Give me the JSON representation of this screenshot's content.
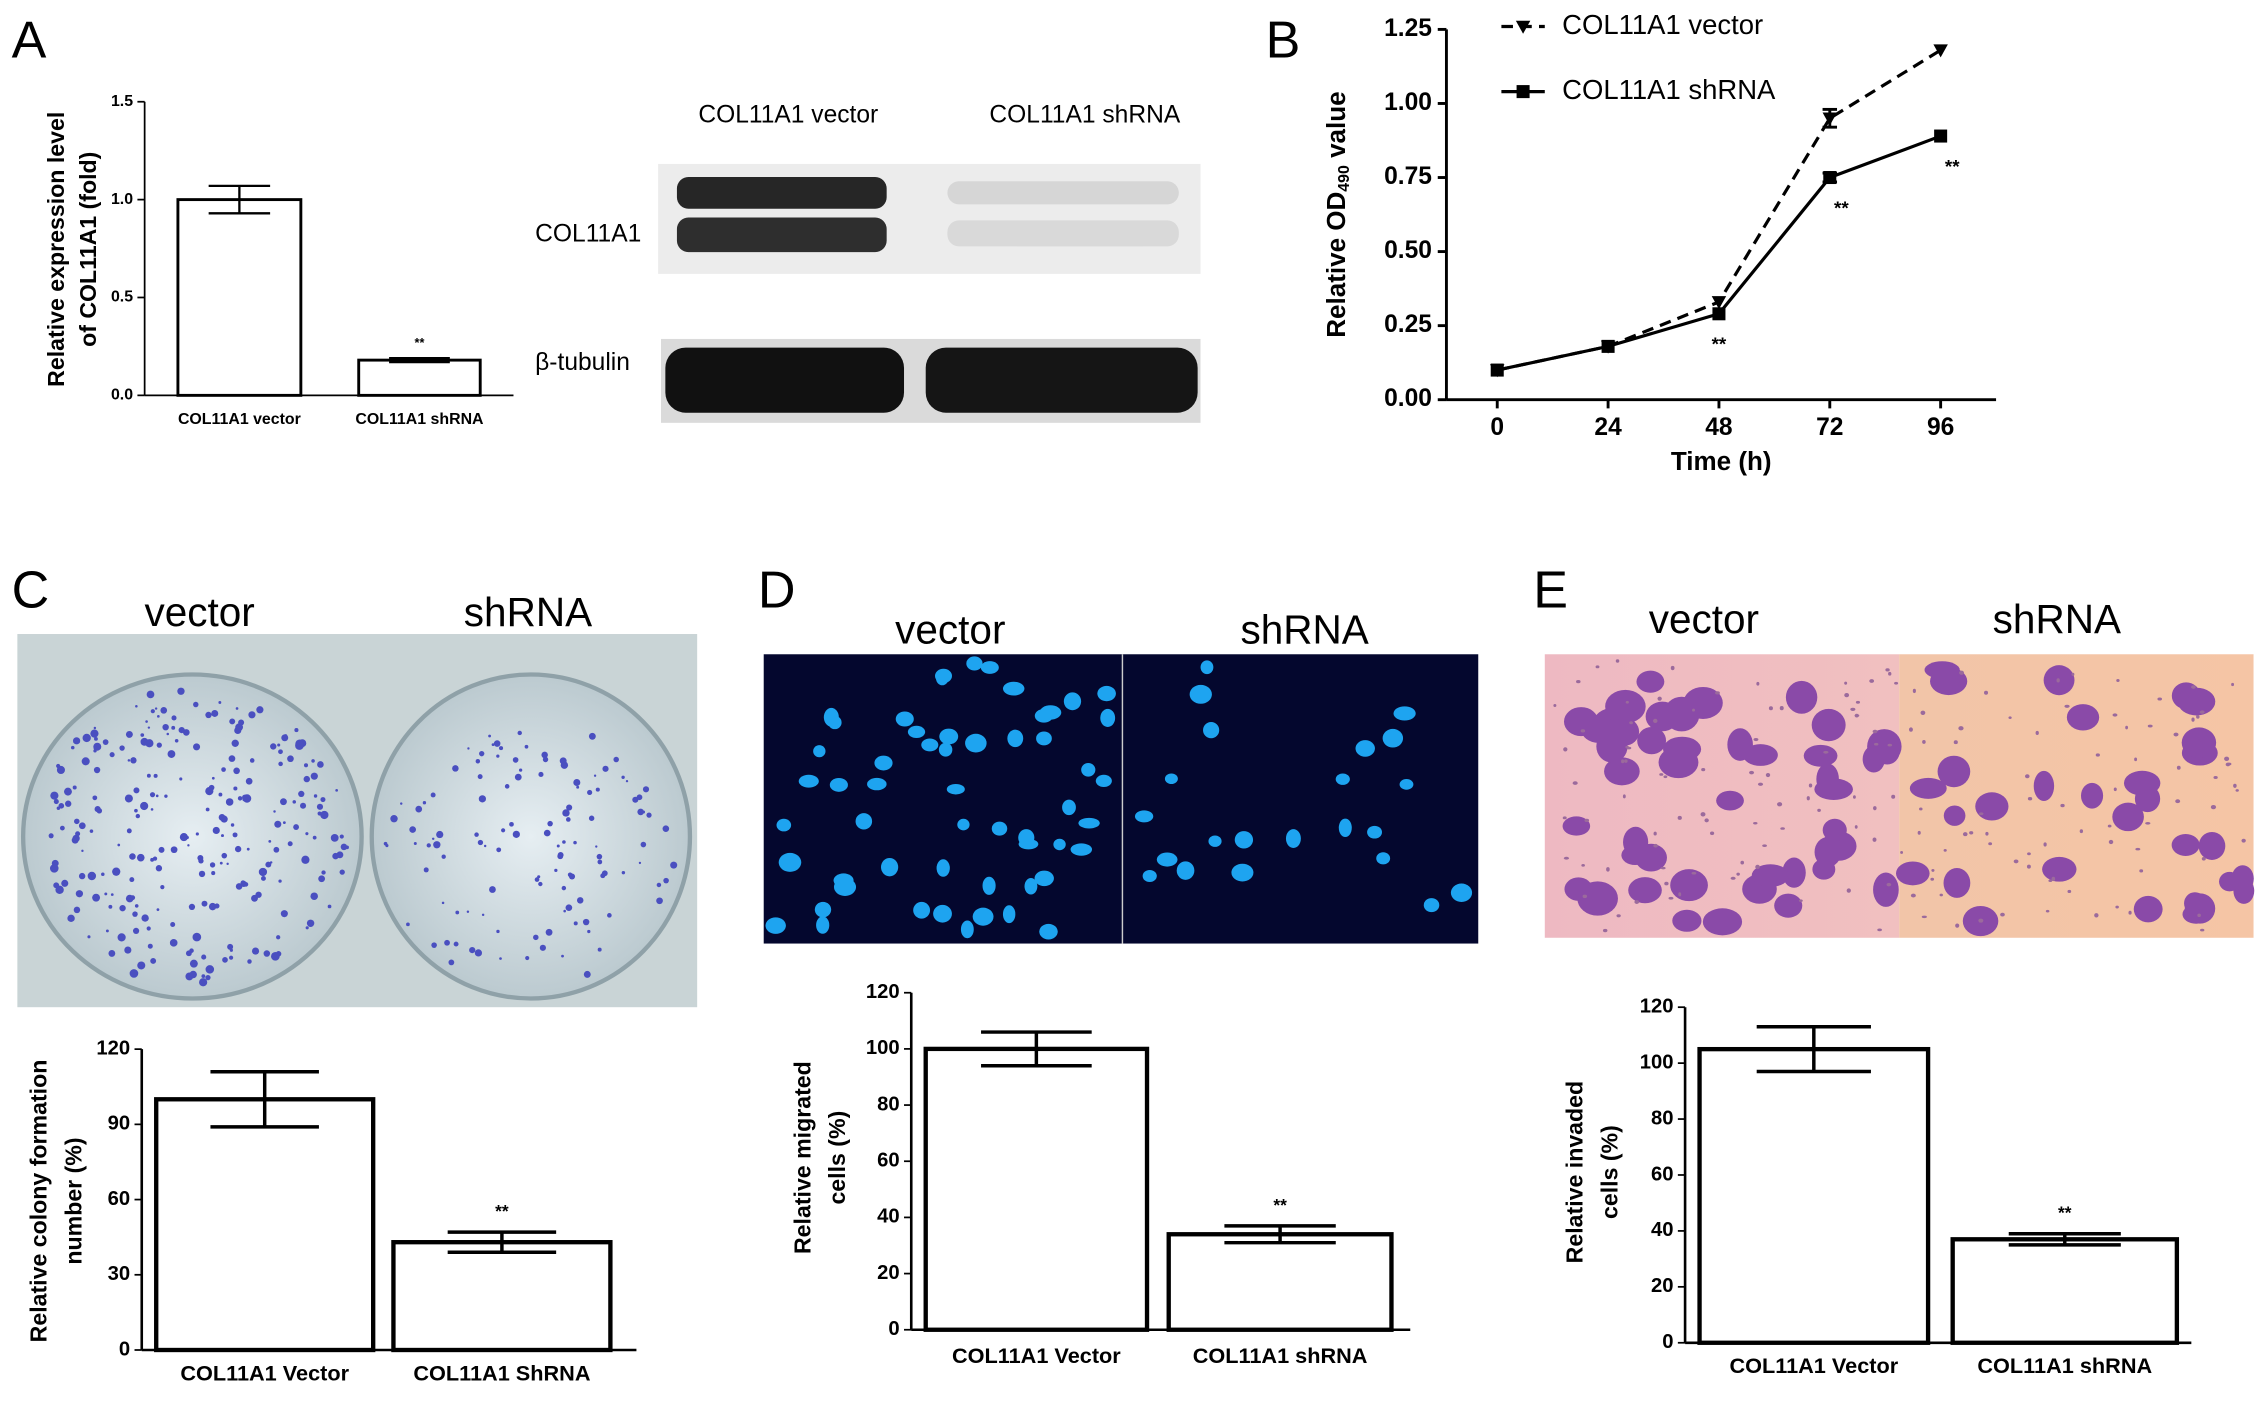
{
  "panel_labels": [
    "A",
    "B",
    "C",
    "D",
    "E"
  ],
  "western_blot": {
    "lanes": [
      "COL11A1 vector",
      "COL11A1 shRNA"
    ],
    "rows": [
      "COL11A1",
      "β-tubulin"
    ]
  },
  "micrographs": [
    {
      "labels": [
        "vector",
        "shRNA"
      ]
    },
    {
      "labels": [
        "vector",
        "shRNA"
      ]
    },
    {
      "labels": [
        "vector",
        "shRNA"
      ]
    }
  ],
  "chart_data": [
    {
      "type": "bar",
      "y_label": [
        "Relative expression level",
        "of COL11A1 (fold)"
      ],
      "categories": [
        "COL11A1 vector",
        "COL11A1 shRNA"
      ],
      "values": [
        1.0,
        0.18
      ],
      "errors": [
        0.07,
        0.01
      ],
      "annotation": "**",
      "ylim": [
        0,
        1.5
      ],
      "yticks": [
        {
          "value": 0,
          "label": "0.0"
        },
        {
          "value": 0.5,
          "label": "0.5"
        },
        {
          "value": 1,
          "label": "1.0"
        },
        {
          "value": 1.5,
          "label": "1.5"
        }
      ],
      "color": "#ffffff"
    },
    {
      "type": "line",
      "x_label": "Time (h)",
      "y_label": [
        "Relative OD",
        "490",
        " value"
      ],
      "x": [
        0,
        24,
        48,
        72,
        96
      ],
      "xlim": [
        -11,
        108
      ],
      "xticks": [
        0,
        24,
        48,
        72,
        96
      ],
      "ylim": [
        0,
        1.25
      ],
      "yticks": [
        {
          "value": 0,
          "label": "0.00"
        },
        {
          "value": 0.25,
          "label": "0.25"
        },
        {
          "value": 0.5,
          "label": "0.50"
        },
        {
          "value": 0.75,
          "label": "0.75"
        },
        {
          "value": 1,
          "label": "1.00"
        },
        {
          "value": 1.25,
          "label": "1.25"
        }
      ],
      "series": [
        {
          "name": "COL11A1 vector",
          "color": "#000000",
          "line_style": "dashed",
          "marker": "triangle-down",
          "values": [
            0.1,
            0.18,
            0.33,
            0.95,
            1.18
          ],
          "errors": [
            null,
            null,
            null,
            0.03,
            null
          ]
        },
        {
          "name": "COL11A1 shRNA",
          "color": "#000000",
          "line_style": "solid",
          "marker": "square",
          "values": [
            0.1,
            0.18,
            0.29,
            0.75,
            0.89
          ],
          "errors": [
            null,
            null,
            null,
            0.015,
            null
          ]
        }
      ],
      "annotations": [
        "**",
        "**",
        "**"
      ],
      "legend": "upper left"
    },
    {
      "type": "bar",
      "y_label": [
        "Relative colony formation",
        "number (%)"
      ],
      "categories": [
        "COL11A1 Vector",
        "COL11A1 ShRNA"
      ],
      "values": [
        100,
        43
      ],
      "errors": [
        11,
        4
      ],
      "annotation": "**",
      "ylim": [
        0,
        120
      ],
      "yticks": [
        0,
        30,
        60,
        90,
        120
      ],
      "color": "#ffffff"
    },
    {
      "type": "bar",
      "y_label": [
        "Relative migrated",
        "cells (%)"
      ],
      "categories": [
        "COL11A1 Vector",
        "COL11A1 shRNA"
      ],
      "values": [
        100,
        34
      ],
      "errors": [
        6,
        3
      ],
      "annotation": "**",
      "ylim": [
        0,
        120
      ],
      "yticks": [
        0,
        20,
        40,
        60,
        80,
        100,
        120
      ],
      "color": "#ffffff"
    },
    {
      "type": "bar",
      "y_label": [
        "Relative invaded",
        "cells (%)"
      ],
      "categories": [
        "COL11A1 Vector",
        "COL11A1 shRNA"
      ],
      "values": [
        105,
        37
      ],
      "errors": [
        8,
        2
      ],
      "annotation": "**",
      "ylim": [
        0,
        120
      ],
      "yticks": [
        0,
        20,
        40,
        60,
        80,
        100,
        120
      ],
      "color": "#ffffff"
    }
  ]
}
